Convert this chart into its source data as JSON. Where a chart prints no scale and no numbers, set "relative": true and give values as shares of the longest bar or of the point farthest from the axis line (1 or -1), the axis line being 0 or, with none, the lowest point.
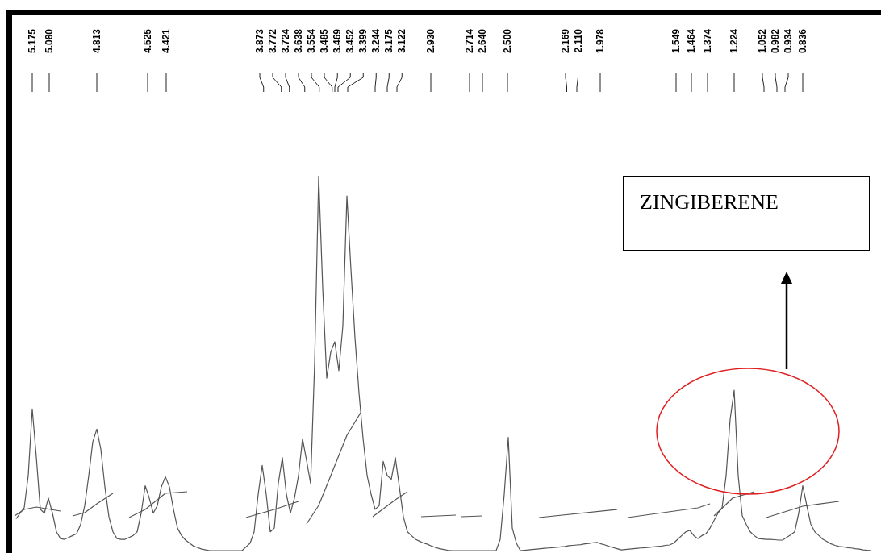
{
  "chart_data": {
    "type": "line",
    "relative": true,
    "categories": [
      null,
      null,
      null,
      null,
      null,
      null,
      null,
      null,
      null,
      null,
      null,
      null,
      null,
      null,
      null,
      null,
      null,
      null,
      null,
      null,
      null,
      null,
      null,
      null,
      null,
      null,
      null,
      null,
      null,
      null,
      null,
      null,
      null,
      null,
      null,
      null,
      null,
      null,
      null,
      null,
      null,
      null,
      null,
      null,
      null,
      null,
      null,
      null,
      null,
      null,
      null,
      null,
      null,
      null,
      null,
      null,
      null,
      null,
      null,
      null,
      null,
      null,
      null,
      null,
      null,
      null,
      null,
      null,
      null,
      null,
      null,
      null,
      null,
      null,
      null,
      null,
      null,
      null,
      null,
      null,
      null,
      null,
      null,
      null,
      null,
      null,
      null,
      null,
      null,
      null,
      null,
      null,
      null,
      null,
      null,
      null,
      null,
      null,
      null,
      null,
      null,
      null,
      null,
      null,
      null,
      null,
      null,
      null,
      null,
      null,
      null,
      null,
      null,
      null,
      null,
      null,
      null,
      null,
      null,
      null,
      null,
      null,
      null,
      null,
      null,
      null,
      null,
      null,
      null,
      null,
      null,
      null,
      null,
      null,
      null,
      null,
      null,
      null,
      null,
      null,
      null,
      null,
      null,
      null,
      null,
      null,
      null,
      null,
      null,
      null,
      null,
      null,
      null,
      null,
      null,
      null,
      null,
      null,
      null,
      null,
      null,
      null,
      null,
      null,
      null,
      null,
      null,
      null,
      null,
      null,
      null,
      null,
      null,
      null,
      null,
      null,
      null,
      null,
      null,
      null,
      null,
      null,
      null,
      null,
      null,
      null,
      null,
      null,
      null,
      null,
      null,
      null,
      null,
      null,
      null,
      null,
      null,
      null,
      null,
      null,
      null,
      null,
      null,
      null,
      null,
      null,
      null,
      null,
      null,
      null,
      null,
      null,
      null
    ],
    "series": [
      {
        "color": "#555555",
        "values": [
          0.085,
          0.1,
          0.114,
          0.2,
          0.378,
          0.25,
          0.11,
          0.1,
          0.14,
          0.1,
          0.05,
          0.032,
          0.03,
          0.035,
          0.04,
          0.045,
          0.07,
          0.12,
          0.2,
          0.29,
          0.324,
          0.27,
          0.17,
          0.09,
          0.05,
          0.032,
          0.03,
          0.03,
          0.035,
          0.04,
          0.05,
          0.1,
          0.173,
          0.14,
          0.1,
          0.12,
          0.17,
          0.197,
          0.17,
          0.11,
          0.06,
          0.04,
          0.028,
          0.02,
          0.012,
          0.008,
          0.004,
          0.002,
          0,
          0,
          0,
          0,
          0,
          0,
          0,
          0,
          0,
          0.01,
          0.02,
          0.05,
          0.15,
          0.227,
          0.15,
          0.05,
          0.06,
          0.18,
          0.248,
          0.15,
          0.1,
          0.14,
          0.2,
          0.298,
          0.24,
          0.179,
          0.5,
          1,
          0.7,
          0.46,
          0.53,
          0.557,
          0.48,
          0.6,
          0.946,
          0.75,
          0.568,
          0.42,
          0.3,
          0.201,
          0.15,
          0.11,
          0.12,
          0.238,
          0.2,
          0.19,
          0.248,
          0.17,
          0.09,
          0.05,
          0.04,
          0.03,
          0.025,
          0.02,
          0.017,
          0.012,
          0.008,
          0.005,
          0.003,
          0.001,
          0,
          0,
          0,
          0,
          0,
          0,
          0,
          0,
          0,
          0,
          0,
          0,
          0.03,
          0.15,
          0.302,
          0.06,
          0.02,
          0,
          0.001,
          0.002,
          0.003,
          0.004,
          0.005,
          0.006,
          0.007,
          0.008,
          0.009,
          0.01,
          0.011,
          0.013,
          0.014,
          0.015,
          0.016,
          0.018,
          0.019,
          0.021,
          0.022,
          0.018,
          0.015,
          0.011,
          0.008,
          0.005,
          0.002,
          0.003,
          0.004,
          0.005,
          0.006,
          0.007,
          0.008,
          0.009,
          0.01,
          0.011,
          0.012,
          0.014,
          0.015,
          0.02,
          0.03,
          0.04,
          0.05,
          0.054,
          0.04,
          0.032,
          0.04,
          0.045,
          0.06,
          0.08,
          0.1,
          0.114,
          0.2,
          0.35,
          0.428,
          0.2,
          0.093,
          0.07,
          0.05,
          0.04,
          0.032,
          0.031,
          0.03,
          0.03,
          0.029,
          0.028,
          0.028,
          0.035,
          0.042,
          0.05,
          0.1,
          0.173,
          0.12,
          0.07,
          0.05,
          0.04,
          0.03,
          0.024,
          0.018,
          0.014,
          0.011,
          0.01,
          0.008,
          0.007,
          0.005,
          0.004,
          0.002,
          0.001,
          0
        ]
      }
    ],
    "annotations": [
      "5.175",
      "5.080",
      "4.813",
      "4.525",
      "4.421",
      "3.873",
      "3.772",
      "3.724",
      "3.638",
      "3.554",
      "3.485",
      "3.469",
      "3.452",
      "3.399",
      "3.244",
      "3.175",
      "3.122",
      "2.930",
      "2.714",
      "2.640",
      "2.500",
      "2.169",
      "2.110",
      "1.978",
      "1.549",
      "1.464",
      "1.374",
      "1.224",
      "1.052",
      "0.982",
      "0.934",
      "0.836",
      "ZINGIBERENE"
    ]
  }
}
